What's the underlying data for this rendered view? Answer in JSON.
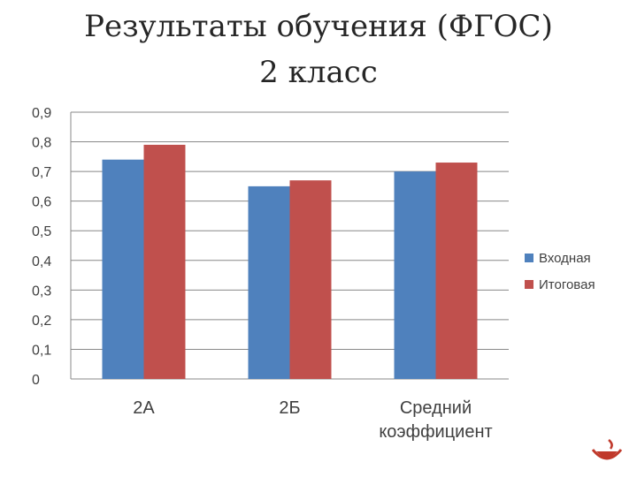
{
  "slide": {
    "title_line1": "Результаты обучения (ФГОС)",
    "title_line2": "2 класс"
  },
  "chart_data": {
    "type": "bar",
    "title": "",
    "xlabel": "",
    "ylabel": "",
    "categories": [
      [
        "2А"
      ],
      [
        "2Б"
      ],
      [
        "Средний",
        "коэффициент"
      ]
    ],
    "series": [
      {
        "name": "Входная",
        "color": "#4F81BD",
        "values": [
          0.74,
          0.65,
          0.7
        ]
      },
      {
        "name": "Итоговая",
        "color": "#C0504D",
        "values": [
          0.79,
          0.67,
          0.73
        ]
      }
    ],
    "ylim": [
      0,
      0.9
    ],
    "yticks": [
      "0",
      "0,1",
      "0,2",
      "0,3",
      "0,4",
      "0,5",
      "0,6",
      "0,7",
      "0,8",
      "0,9"
    ],
    "grid": true,
    "legend": "right"
  },
  "logo": {
    "icon": "bowl-logo-icon",
    "color": "#C0392B"
  }
}
